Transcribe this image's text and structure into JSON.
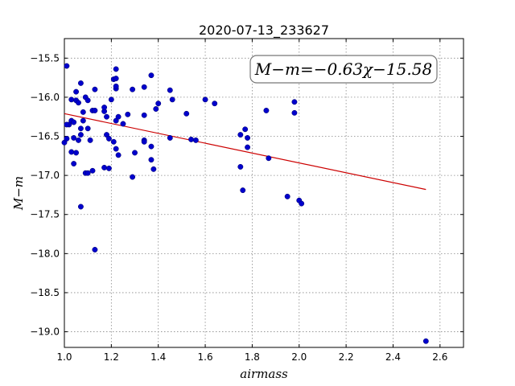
{
  "chart_data": {
    "type": "scatter",
    "title": "2020-07-13_233627",
    "xlabel": "airmass",
    "ylabel": "M−m",
    "xlim": [
      1.0,
      2.7
    ],
    "ylim": [
      -19.2,
      -15.25
    ],
    "xticks": [
      1.0,
      1.2,
      1.4,
      1.6,
      1.8,
      2.0,
      2.2,
      2.4,
      2.6
    ],
    "yticks": [
      -15.5,
      -16.0,
      -16.5,
      -17.0,
      -17.5,
      -18.0,
      -18.5,
      -19.0
    ],
    "grid": true,
    "annotation": "M−m=−0.63χ−15.58",
    "annotation_placement": "top-right",
    "point_color": "#0000cc",
    "fit_color": "#cc0000",
    "fit": {
      "slope": -0.63,
      "intercept": -15.58,
      "x_range": [
        1.0,
        2.54
      ]
    },
    "points": [
      [
        1.01,
        -15.6
      ],
      [
        1.0,
        -16.58
      ],
      [
        1.01,
        -16.53
      ],
      [
        1.02,
        -16.35
      ],
      [
        1.01,
        -16.35
      ],
      [
        1.03,
        -16.3
      ],
      [
        1.03,
        -16.7
      ],
      [
        1.03,
        -16.03
      ],
      [
        1.04,
        -16.32
      ],
      [
        1.04,
        -16.52
      ],
      [
        1.04,
        -16.85
      ],
      [
        1.05,
        -16.04
      ],
      [
        1.05,
        -16.71
      ],
      [
        1.05,
        -15.93
      ],
      [
        1.06,
        -16.07
      ],
      [
        1.06,
        -16.55
      ],
      [
        1.07,
        -16.48
      ],
      [
        1.07,
        -15.82
      ],
      [
        1.07,
        -17.4
      ],
      [
        1.07,
        -16.4
      ],
      [
        1.08,
        -16.3
      ],
      [
        1.08,
        -16.19
      ],
      [
        1.09,
        -16.0
      ],
      [
        1.09,
        -16.97
      ],
      [
        1.1,
        -16.97
      ],
      [
        1.1,
        -16.04
      ],
      [
        1.1,
        -16.4
      ],
      [
        1.11,
        -16.55
      ],
      [
        1.12,
        -16.94
      ],
      [
        1.12,
        -16.17
      ],
      [
        1.13,
        -15.9
      ],
      [
        1.13,
        -16.17
      ],
      [
        1.13,
        -17.95
      ],
      [
        1.17,
        -16.18
      ],
      [
        1.17,
        -16.13
      ],
      [
        1.17,
        -16.9
      ],
      [
        1.18,
        -16.25
      ],
      [
        1.18,
        -16.48
      ],
      [
        1.19,
        -16.53
      ],
      [
        1.19,
        -16.91
      ],
      [
        1.2,
        -16.03
      ],
      [
        1.21,
        -15.77
      ],
      [
        1.21,
        -16.57
      ],
      [
        1.22,
        -16.66
      ],
      [
        1.22,
        -15.76
      ],
      [
        1.22,
        -15.64
      ],
      [
        1.22,
        -15.89
      ],
      [
        1.22,
        -15.86
      ],
      [
        1.22,
        -16.3
      ],
      [
        1.23,
        -16.74
      ],
      [
        1.23,
        -16.25
      ],
      [
        1.25,
        -16.34
      ],
      [
        1.27,
        -16.22
      ],
      [
        1.29,
        -17.02
      ],
      [
        1.29,
        -15.9
      ],
      [
        1.3,
        -16.71
      ],
      [
        1.34,
        -16.55
      ],
      [
        1.34,
        -16.57
      ],
      [
        1.34,
        -16.23
      ],
      [
        1.34,
        -15.87
      ],
      [
        1.37,
        -16.63
      ],
      [
        1.37,
        -16.8
      ],
      [
        1.37,
        -15.72
      ],
      [
        1.38,
        -16.92
      ],
      [
        1.39,
        -16.15
      ],
      [
        1.4,
        -16.08
      ],
      [
        1.45,
        -16.52
      ],
      [
        1.45,
        -15.91
      ],
      [
        1.46,
        -16.03
      ],
      [
        1.52,
        -16.21
      ],
      [
        1.54,
        -16.54
      ],
      [
        1.56,
        -16.55
      ],
      [
        1.6,
        -16.03
      ],
      [
        1.64,
        -16.08
      ],
      [
        1.75,
        -16.89
      ],
      [
        1.75,
        -16.48
      ],
      [
        1.76,
        -17.19
      ],
      [
        1.77,
        -16.41
      ],
      [
        1.78,
        -16.52
      ],
      [
        1.78,
        -16.64
      ],
      [
        1.86,
        -16.17
      ],
      [
        1.87,
        -16.78
      ],
      [
        1.95,
        -17.27
      ],
      [
        1.98,
        -16.06
      ],
      [
        1.98,
        -16.2
      ],
      [
        2.0,
        -17.32
      ],
      [
        2.01,
        -17.36
      ],
      [
        2.54,
        -19.12
      ]
    ]
  }
}
